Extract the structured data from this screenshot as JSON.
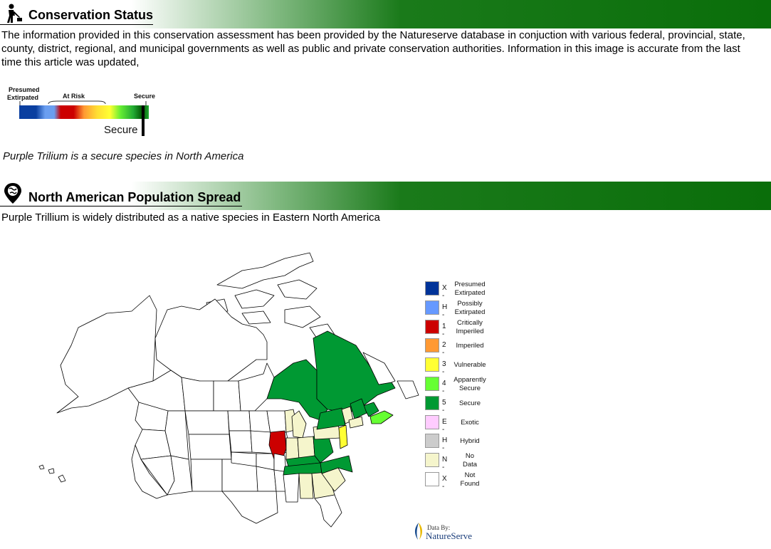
{
  "section1": {
    "title": "Conservation Status",
    "icon": "worker-icon"
  },
  "intro_text": "The information provided in this conservation assessment has been provided by the Natureserve database in conjuction with various federal, provincial, state, county, district, regional, and municipal governments as well as public and private conservation authorities. Information in this image is accurate from the last time this article was updated,",
  "status_scale": {
    "label_presumed": "Presumed",
    "label_extirpated": "Extirpated",
    "label_at_risk": "At Risk",
    "label_secure": "Secure",
    "marker_label": "Secure",
    "colors": [
      "#0a3fa0",
      "#6a9ef0",
      "#cc0000",
      "#ff9933",
      "#ffff33",
      "#66ee33",
      "#22aa33"
    ]
  },
  "status_sentence": "Purple Trilium is a secure species in North America",
  "section2": {
    "title": "North American Population Spread",
    "icon": "globe-pin-icon"
  },
  "spread_text": "Purple Trillium is widely distributed as a native species in Eastern North America",
  "legend": [
    {
      "code": "X -",
      "lines": [
        "Presumed",
        "Extirpated"
      ],
      "color": "#003399"
    },
    {
      "code": "H -",
      "lines": [
        "Possibly",
        "Extirpated"
      ],
      "color": "#6699ff"
    },
    {
      "code": "1 -",
      "lines": [
        "Critically",
        "Imperiled"
      ],
      "color": "#cc0000"
    },
    {
      "code": "2 -",
      "lines": [
        "Imperiled"
      ],
      "color": "#ff9933"
    },
    {
      "code": "3 -",
      "lines": [
        "Vulnerable"
      ],
      "color": "#ffff33"
    },
    {
      "code": "4 -",
      "lines": [
        "Apparently",
        "Secure"
      ],
      "color": "#66ff33"
    },
    {
      "code": "5 -",
      "lines": [
        "Secure"
      ],
      "color": "#009933"
    },
    {
      "code": "E -",
      "lines": [
        "Exotic"
      ],
      "color": "#ffccff"
    },
    {
      "code": "H -",
      "lines": [
        "Hybrid"
      ],
      "color": "#cccccc"
    },
    {
      "code": "N -",
      "lines": [
        "No",
        "Data"
      ],
      "color": "#f5f5cc"
    },
    {
      "code": "X -",
      "lines": [
        "Not",
        "Found"
      ],
      "color": "#ffffff"
    }
  ],
  "map_colors": {
    "secure": "#009933",
    "apparently_secure": "#66ff33",
    "critically_imperiled": "#cc0000",
    "vulnerable": "#ffff33",
    "no_data": "#f5f5cc",
    "not_found": "#ffffff"
  },
  "credit": {
    "line1": "Data By:",
    "line2": "NatureServe"
  }
}
